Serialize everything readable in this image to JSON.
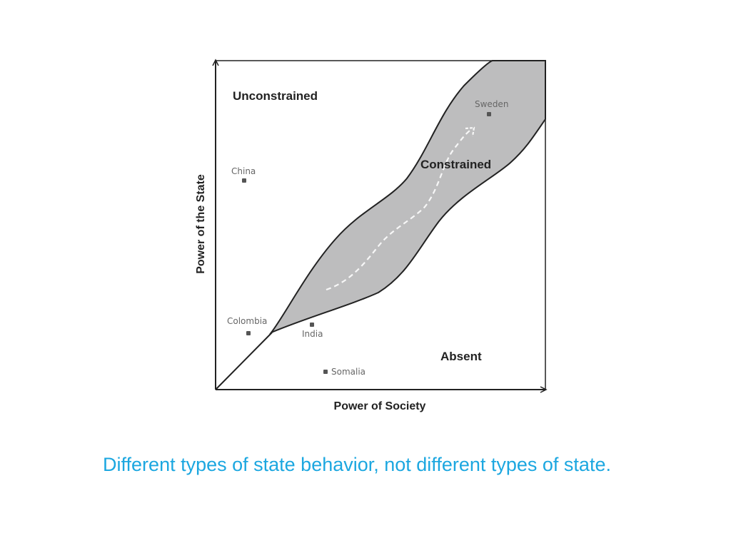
{
  "diagram": {
    "regions": {
      "unconstrained": "Unconstrained",
      "constrained": "Constrained",
      "absent": "Absent"
    },
    "axes": {
      "x_title": "Power of Society",
      "y_title": "Power of the State"
    },
    "countries": {
      "sweden": "Sweden",
      "china": "China",
      "colombia": "Colombia",
      "india": "India",
      "somalia": "Somalia"
    }
  },
  "caption": "Different types of state behavior, not different types of state.",
  "colors": {
    "corridor_fill": "#bdbdbe",
    "caption": "#1ca7e0",
    "point": "#555555"
  }
}
